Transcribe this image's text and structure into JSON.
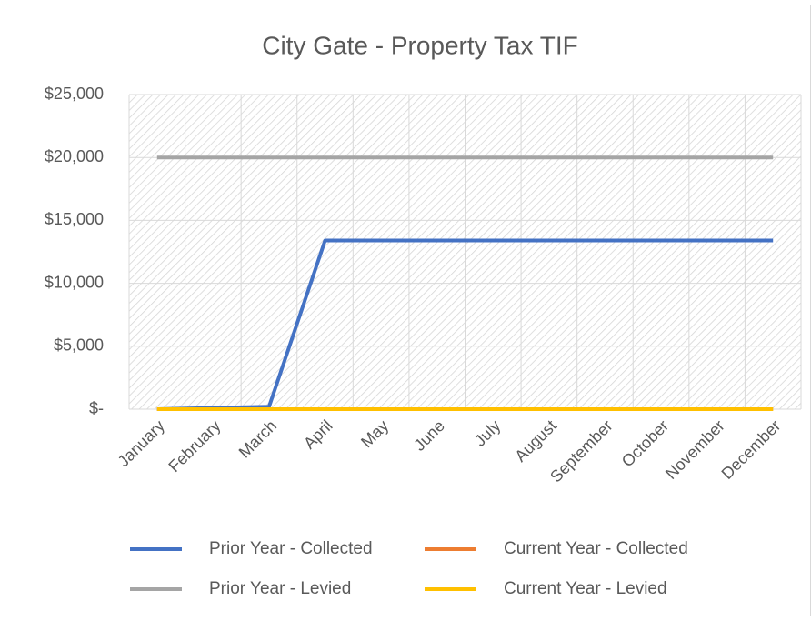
{
  "chart_data": {
    "type": "line",
    "title": "City Gate - Property Tax TIF",
    "categories": [
      "January",
      "February",
      "March",
      "April",
      "May",
      "June",
      "July",
      "August",
      "September",
      "October",
      "November",
      "December"
    ],
    "series": [
      {
        "name": "Prior Year - Collected",
        "color": "#4472c4",
        "values": [
          0,
          100,
          200,
          13400,
          13400,
          13400,
          13400,
          13400,
          13400,
          13400,
          13400,
          13400
        ]
      },
      {
        "name": "Current Year - Collected",
        "color": "#ed7d31",
        "values": [
          0,
          0,
          0,
          0,
          0,
          0,
          0,
          0,
          0,
          0,
          0,
          0
        ]
      },
      {
        "name": "Prior Year - Levied",
        "color": "#a5a5a5",
        "values": [
          20000,
          20000,
          20000,
          20000,
          20000,
          20000,
          20000,
          20000,
          20000,
          20000,
          20000,
          20000
        ]
      },
      {
        "name": "Current Year - Levied",
        "color": "#ffc000",
        "values": [
          0,
          0,
          0,
          0,
          0,
          0,
          0,
          0,
          0,
          0,
          0,
          0
        ]
      }
    ],
    "ylim": [
      0,
      25000
    ],
    "yticks": [
      {
        "value": 0,
        "label": "$-"
      },
      {
        "value": 5000,
        "label": "$5,000"
      },
      {
        "value": 10000,
        "label": "$10,000"
      },
      {
        "value": 15000,
        "label": "$15,000"
      },
      {
        "value": 20000,
        "label": "$20,000"
      },
      {
        "value": 25000,
        "label": "$25,000"
      }
    ],
    "grid": true,
    "legend": "bottom"
  }
}
